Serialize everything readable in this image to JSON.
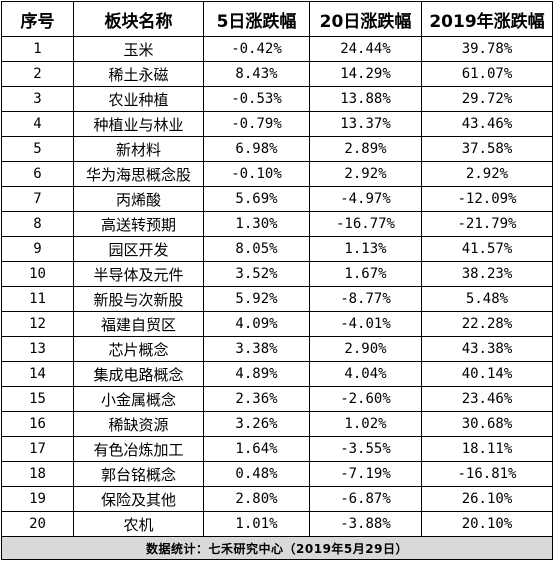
{
  "headers": [
    "序号",
    "板块名称",
    "5日涨跌幅",
    "20日涨跌幅",
    "2019年涨跌幅"
  ],
  "rows": [
    {
      "no": "1",
      "name": "玉米",
      "d5": "-0.42%",
      "d20": "24.44%",
      "y2019": "39.78%"
    },
    {
      "no": "2",
      "name": "稀土永磁",
      "d5": "8.43%",
      "d20": "14.29%",
      "y2019": "61.07%"
    },
    {
      "no": "3",
      "name": "农业种植",
      "d5": "-0.53%",
      "d20": "13.88%",
      "y2019": "29.72%"
    },
    {
      "no": "4",
      "name": "种植业与林业",
      "d5": "-0.79%",
      "d20": "13.37%",
      "y2019": "43.46%"
    },
    {
      "no": "5",
      "name": "新材料",
      "d5": "6.98%",
      "d20": "2.89%",
      "y2019": "37.58%"
    },
    {
      "no": "6",
      "name": "华为海思概念股",
      "d5": "-0.10%",
      "d20": "2.92%",
      "y2019": "2.92%"
    },
    {
      "no": "7",
      "name": "丙烯酸",
      "d5": "5.69%",
      "d20": "-4.97%",
      "y2019": "-12.09%"
    },
    {
      "no": "8",
      "name": "高送转预期",
      "d5": "1.30%",
      "d20": "-16.77%",
      "y2019": "-21.79%"
    },
    {
      "no": "9",
      "name": "园区开发",
      "d5": "8.05%",
      "d20": "1.13%",
      "y2019": "41.57%"
    },
    {
      "no": "10",
      "name": "半导体及元件",
      "d5": "3.52%",
      "d20": "1.67%",
      "y2019": "38.23%"
    },
    {
      "no": "11",
      "name": "新股与次新股",
      "d5": "5.92%",
      "d20": "-8.77%",
      "y2019": "5.48%"
    },
    {
      "no": "12",
      "name": "福建自贸区",
      "d5": "4.09%",
      "d20": "-4.01%",
      "y2019": "22.28%"
    },
    {
      "no": "13",
      "name": "芯片概念",
      "d5": "3.38%",
      "d20": "2.90%",
      "y2019": "43.38%"
    },
    {
      "no": "14",
      "name": "集成电路概念",
      "d5": "4.89%",
      "d20": "4.04%",
      "y2019": "40.14%"
    },
    {
      "no": "15",
      "name": "小金属概念",
      "d5": "2.36%",
      "d20": "-2.60%",
      "y2019": "23.46%"
    },
    {
      "no": "16",
      "name": "稀缺资源",
      "d5": "3.26%",
      "d20": "1.02%",
      "y2019": "30.68%"
    },
    {
      "no": "17",
      "name": "有色冶炼加工",
      "d5": "1.64%",
      "d20": "-3.55%",
      "y2019": "18.11%"
    },
    {
      "no": "18",
      "name": "郭台铭概念",
      "d5": "0.48%",
      "d20": "-7.19%",
      "y2019": "-16.81%"
    },
    {
      "no": "19",
      "name": "保险及其他",
      "d5": "2.80%",
      "d20": "-6.87%",
      "y2019": "26.10%"
    },
    {
      "no": "20",
      "name": "农机",
      "d5": "1.01%",
      "d20": "-3.88%",
      "y2019": "20.10%"
    }
  ],
  "footer": "数据统计：七禾研究中心（2019年5月29日）",
  "colors": {
    "border": "#000000",
    "footer_bg": "#d9d9d9"
  }
}
